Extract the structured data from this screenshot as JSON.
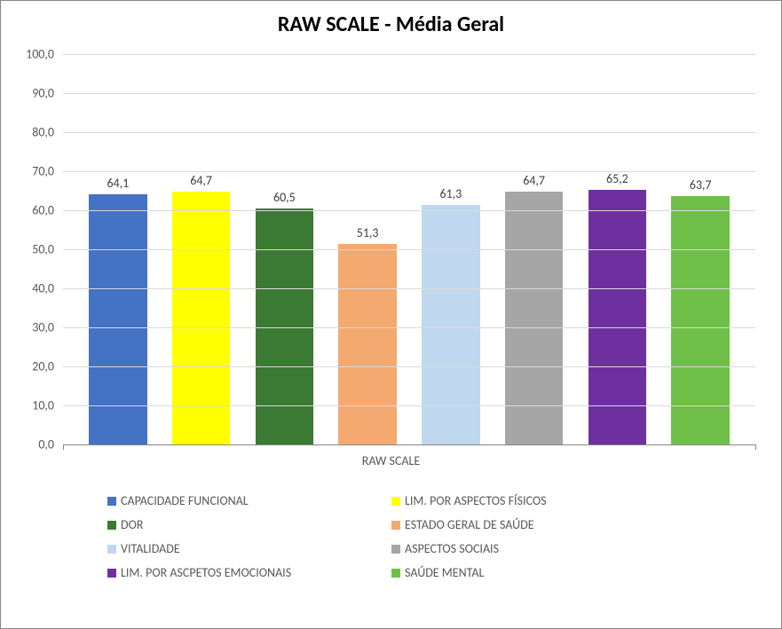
{
  "chart": {
    "type": "bar",
    "title": "RAW SCALE - Média Geral",
    "title_fontsize": 24,
    "title_fontweight": "bold",
    "x_category": "RAW SCALE",
    "ylim": [
      0,
      100
    ],
    "ytick_step": 10,
    "yticks": [
      "0,0",
      "10,0",
      "20,0",
      "30,0",
      "40,0",
      "50,0",
      "60,0",
      "70,0",
      "80,0",
      "90,0",
      "100,0"
    ],
    "grid_color": "#d9d9d9",
    "axis_color": "#888888",
    "background_color": "#ffffff",
    "label_fontsize": 14,
    "label_color": "#595959",
    "bar_width": 0.7,
    "series": [
      {
        "name": "CAPACIDADE FUNCIONAL",
        "value": 64.1,
        "label": "64,1",
        "color": "#4472c4"
      },
      {
        "name": "LIM. POR ASPECTOS FÍSICOS",
        "value": 64.7,
        "label": "64,7",
        "color": "#ffff00"
      },
      {
        "name": "DOR",
        "value": 60.5,
        "label": "60,5",
        "color": "#3b7a32"
      },
      {
        "name": "ESTADO GERAL DE SAÚDE",
        "value": 51.3,
        "label": "51,3",
        "color": "#f4a971"
      },
      {
        "name": "VITALIDADE",
        "value": 61.3,
        "label": "61,3",
        "color": "#c0d8ef"
      },
      {
        "name": "ASPECTOS SOCIAIS",
        "value": 64.7,
        "label": "64,7",
        "color": "#a6a6a6"
      },
      {
        "name": "LIM. POR ASCPETOS EMOCIONAIS",
        "value": 65.2,
        "label": "65,2",
        "color": "#6e309e"
      },
      {
        "name": "SAÚDE MENTAL",
        "value": 63.7,
        "label": "63,7",
        "color": "#6fc048"
      }
    ]
  }
}
